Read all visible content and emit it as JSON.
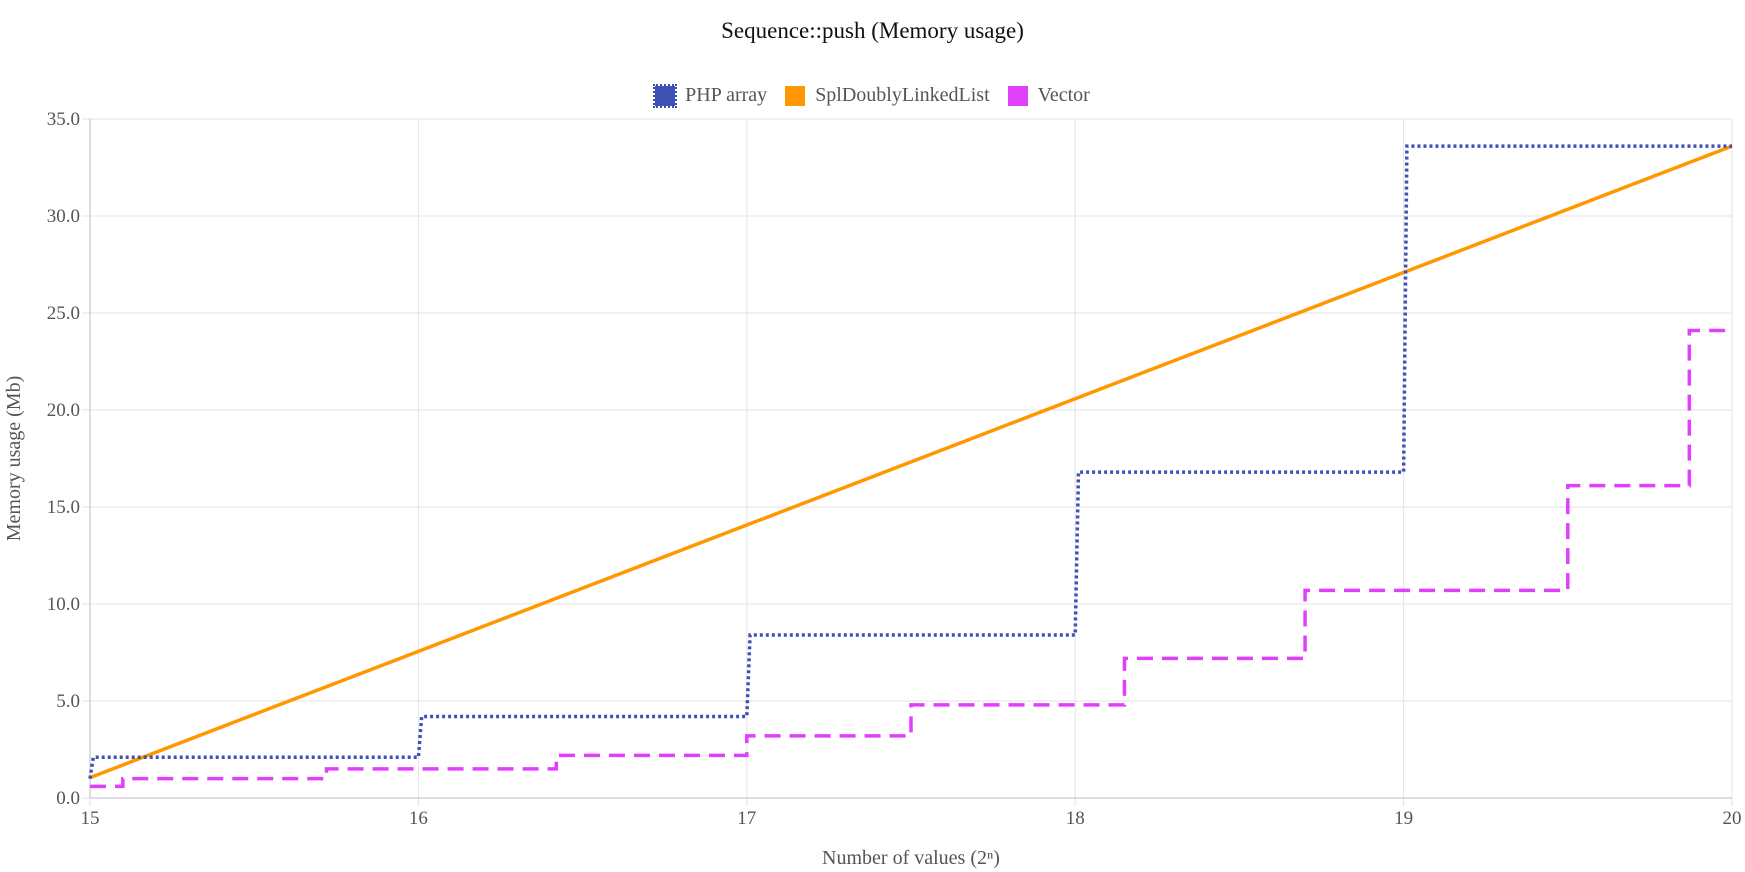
{
  "chart_data": {
    "type": "line",
    "title": "Sequence::push (Memory usage)",
    "xlabel": "Number of values (2ⁿ)",
    "ylabel": "Memory usage (Mb)",
    "xlim": [
      15,
      20
    ],
    "ylim": [
      0,
      35
    ],
    "x_ticks": [
      15,
      16,
      17,
      18,
      19,
      20
    ],
    "x_tick_labels": [
      "15",
      "16",
      "17",
      "18",
      "19",
      "20"
    ],
    "y_ticks": [
      0,
      5,
      10,
      15,
      20,
      25,
      30,
      35
    ],
    "y_tick_labels": [
      "0.0",
      "5.0",
      "10.0",
      "15.0",
      "20.0",
      "25.0",
      "30.0",
      "35.0"
    ],
    "grid": true,
    "legend_position": "top-center",
    "series": [
      {
        "name": "PHP array",
        "color": "#3f51b5",
        "style": "dotted",
        "step": true,
        "points": [
          [
            15,
            1.0
          ],
          [
            15.01,
            2.1
          ],
          [
            16,
            2.1
          ],
          [
            16.01,
            4.2
          ],
          [
            17,
            4.2
          ],
          [
            17.01,
            8.4
          ],
          [
            18,
            8.4
          ],
          [
            18.01,
            16.8
          ],
          [
            19,
            16.8
          ],
          [
            19.01,
            33.6
          ],
          [
            20,
            33.6
          ]
        ]
      },
      {
        "name": "SplDoublyLinkedList",
        "color": "#ff9800",
        "style": "solid",
        "step": false,
        "points": [
          [
            15,
            1.05
          ],
          [
            20,
            33.6
          ]
        ]
      },
      {
        "name": "Vector",
        "color": "#e040fb",
        "style": "dashed",
        "step": true,
        "points": [
          [
            15,
            0.6
          ],
          [
            15.1,
            0.6
          ],
          [
            15.1,
            1.0
          ],
          [
            15.72,
            1.0
          ],
          [
            15.72,
            1.5
          ],
          [
            16.42,
            1.5
          ],
          [
            16.42,
            2.2
          ],
          [
            17,
            2.2
          ],
          [
            17,
            3.2
          ],
          [
            17.5,
            3.2
          ],
          [
            17.5,
            4.8
          ],
          [
            18.15,
            4.8
          ],
          [
            18.15,
            7.2
          ],
          [
            18.7,
            7.2
          ],
          [
            18.7,
            10.7
          ],
          [
            19.5,
            10.7
          ],
          [
            19.5,
            16.1
          ],
          [
            19.87,
            16.1
          ],
          [
            19.87,
            24.1
          ],
          [
            20,
            24.1
          ]
        ]
      }
    ]
  }
}
